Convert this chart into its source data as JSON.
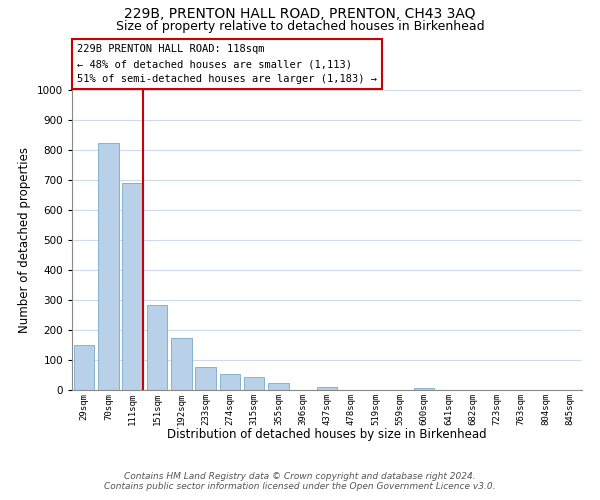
{
  "title": "229B, PRENTON HALL ROAD, PRENTON, CH43 3AQ",
  "subtitle": "Size of property relative to detached houses in Birkenhead",
  "xlabel": "Distribution of detached houses by size in Birkenhead",
  "ylabel": "Number of detached properties",
  "bar_labels": [
    "29sqm",
    "70sqm",
    "111sqm",
    "151sqm",
    "192sqm",
    "233sqm",
    "274sqm",
    "315sqm",
    "355sqm",
    "396sqm",
    "437sqm",
    "478sqm",
    "519sqm",
    "559sqm",
    "600sqm",
    "641sqm",
    "682sqm",
    "723sqm",
    "763sqm",
    "804sqm",
    "845sqm"
  ],
  "bar_values": [
    150,
    825,
    690,
    285,
    175,
    78,
    53,
    42,
    22,
    0,
    10,
    0,
    0,
    0,
    8,
    0,
    0,
    0,
    0,
    0,
    0
  ],
  "bar_color": "#b8d0e8",
  "bar_edge_color": "#7aaac8",
  "vline_color": "#cc0000",
  "ylim": [
    0,
    1000
  ],
  "yticks": [
    0,
    100,
    200,
    300,
    400,
    500,
    600,
    700,
    800,
    900,
    1000
  ],
  "annotation_title": "229B PRENTON HALL ROAD: 118sqm",
  "annotation_line1": "← 48% of detached houses are smaller (1,113)",
  "annotation_line2": "51% of semi-detached houses are larger (1,183) →",
  "annotation_box_color": "#ffffff",
  "annotation_box_edge": "#cc0000",
  "footer1": "Contains HM Land Registry data © Crown copyright and database right 2024.",
  "footer2": "Contains public sector information licensed under the Open Government Licence v3.0.",
  "bg_color": "#ffffff",
  "grid_color": "#ccdaeb",
  "title_fontsize": 10,
  "subtitle_fontsize": 9,
  "annotation_fontsize": 7.5,
  "footer_fontsize": 6.5
}
